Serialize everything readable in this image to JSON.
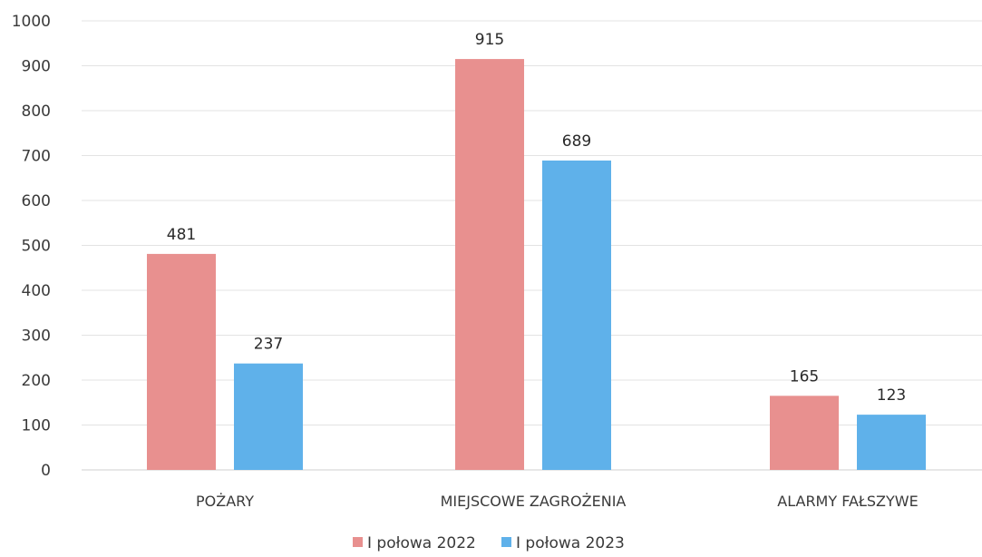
{
  "chart_data": {
    "type": "bar",
    "categories": [
      "POŻARY",
      "MIEJSCOWE ZAGROŻENIA",
      "ALARMY FAŁSZYWE"
    ],
    "series": [
      {
        "name": "I połowa 2022",
        "values": [
          481,
          915,
          165
        ],
        "color": "#e8908f"
      },
      {
        "name": "I połowa 2023",
        "values": [
          237,
          689,
          123
        ],
        "color": "#5fb1ea"
      }
    ],
    "yticks": [
      0,
      100,
      200,
      300,
      400,
      500,
      600,
      700,
      800,
      900,
      1000
    ],
    "ylim": [
      0,
      1000
    ],
    "grid": true,
    "legend_position": "bottom-center"
  }
}
